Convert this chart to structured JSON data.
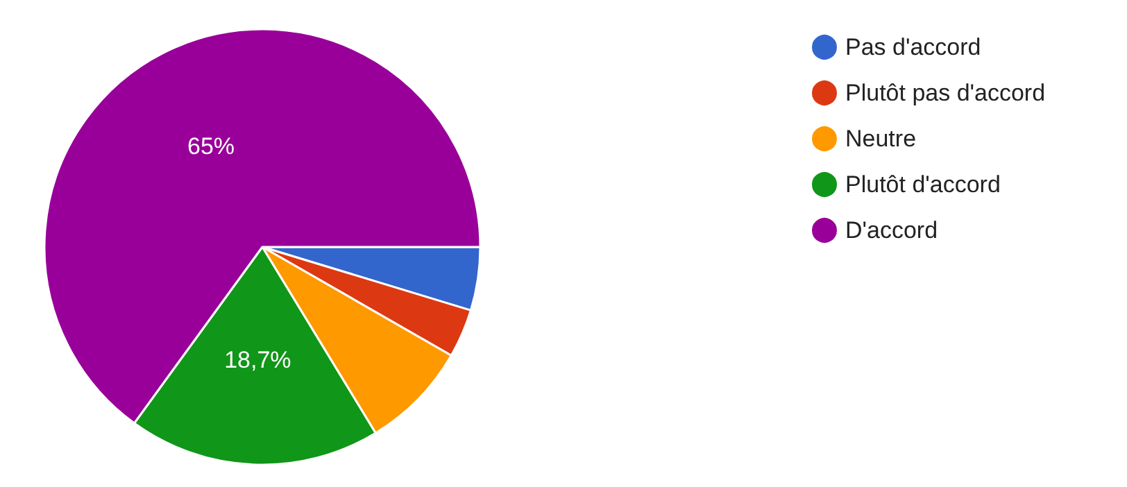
{
  "chart_data": {
    "type": "pie",
    "categories": [
      "Pas d'accord",
      "Plutôt pas d'accord",
      "Neutre",
      "Plutôt d'accord",
      "D'accord"
    ],
    "values": [
      4.7,
      3.6,
      8,
      18.7,
      65
    ],
    "colors": [
      "#3366cc",
      "#dc3912",
      "#ff9900",
      "#109618",
      "#990099"
    ],
    "value_labels": [
      null,
      null,
      null,
      "18,7%",
      "65%"
    ],
    "legend": "top right"
  }
}
